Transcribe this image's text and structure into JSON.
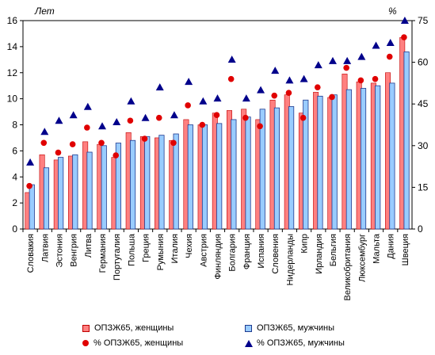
{
  "chart_data": {
    "type": "bar",
    "left_unit": "Лет",
    "right_unit": "%",
    "y_left_lim": [
      0,
      16
    ],
    "y_left_ticks": [
      0,
      2,
      4,
      6,
      8,
      10,
      12,
      14,
      16
    ],
    "y_right_lim": [
      0,
      75
    ],
    "y_right_ticks": [
      0,
      15,
      30,
      45,
      60,
      75
    ],
    "categories": [
      "Словакия",
      "Латвия",
      "Эстония",
      "Венгрия",
      "Литва",
      "Германия",
      "Португалия",
      "Польша",
      "Греция",
      "Румыния",
      "Италия",
      "Чехия",
      "Австрия",
      "Финляндия",
      "Болгария",
      "Франция",
      "Испания",
      "Словения",
      "Нидерланды",
      "Кипр",
      "Ирландия",
      "Бельгия",
      "Великобритания",
      "Люксембург",
      "Мальта",
      "Дания",
      "Швеция"
    ],
    "series": [
      {
        "name": "ОПЗЖ65, женщины",
        "kind": "bar",
        "axis": "left",
        "color": "#ff8080",
        "border": "#c00000",
        "values": [
          2.8,
          5.7,
          5.3,
          5.6,
          6.7,
          6.5,
          5.5,
          7.4,
          7.1,
          7.0,
          6.8,
          8.4,
          8.0,
          8.9,
          9.1,
          9.2,
          8.4,
          9.9,
          10.3,
          8.9,
          10.5,
          10.1,
          11.9,
          11.3,
          11.2,
          12.0,
          14.7
        ]
      },
      {
        "name": "ОПЗЖ65, мужчины",
        "kind": "bar",
        "axis": "left",
        "color": "#99ccff",
        "border": "#1f3a8f",
        "values": [
          3.4,
          4.7,
          5.5,
          5.7,
          5.9,
          6.4,
          6.6,
          6.8,
          7.1,
          7.2,
          7.3,
          8.0,
          8.0,
          8.1,
          8.4,
          8.6,
          9.2,
          9.3,
          9.4,
          9.9,
          10.2,
          10.3,
          10.7,
          10.8,
          11.0,
          11.2,
          13.6
        ]
      },
      {
        "name": "% ОПЗЖ65, женщины",
        "kind": "dot",
        "axis": "right",
        "color": "#e00000",
        "values": [
          15.5,
          31,
          27.5,
          30.5,
          36.5,
          31,
          26.5,
          39,
          32.5,
          40,
          31,
          44.5,
          37.5,
          41,
          54,
          40,
          37,
          48,
          49,
          40,
          51,
          47.5,
          58,
          53.5,
          54,
          62,
          69
        ]
      },
      {
        "name": "% ОПЗЖ65, мужчины",
        "kind": "triangle",
        "axis": "right",
        "color": "#00008b",
        "values": [
          24,
          35,
          39,
          41,
          44,
          37,
          38.5,
          46,
          40,
          51,
          41,
          53,
          46,
          47,
          61,
          47,
          50,
          57,
          53.5,
          54,
          59,
          60.5,
          60.5,
          62,
          66,
          67,
          75
        ]
      }
    ]
  }
}
